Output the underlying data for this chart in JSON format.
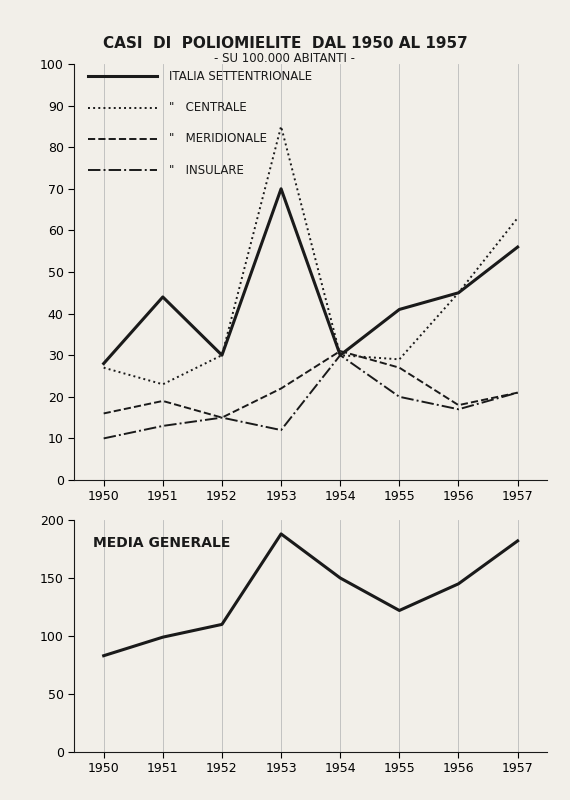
{
  "title_main": "CASI  DI  POLIOMIELITE  DAL 1950 AL 1957",
  "title_sub": "- SU 100.000 ABITANTI -",
  "years": [
    1950,
    1951,
    1952,
    1953,
    1954,
    1955,
    1956,
    1957
  ],
  "settentrionale": [
    28,
    44,
    30,
    70,
    30,
    41,
    45,
    56
  ],
  "centrale": [
    27,
    23,
    30,
    85,
    30,
    29,
    45,
    63
  ],
  "meridionale": [
    16,
    19,
    15,
    22,
    31,
    27,
    18,
    21
  ],
  "insulare": [
    10,
    13,
    15,
    12,
    30,
    20,
    17,
    21
  ],
  "media_generale": [
    83,
    99,
    110,
    188,
    150,
    122,
    145,
    182
  ],
  "bg_color": "#f2efe9",
  "line_color": "#1a1a1a",
  "grid_color": "#bbbbbb"
}
